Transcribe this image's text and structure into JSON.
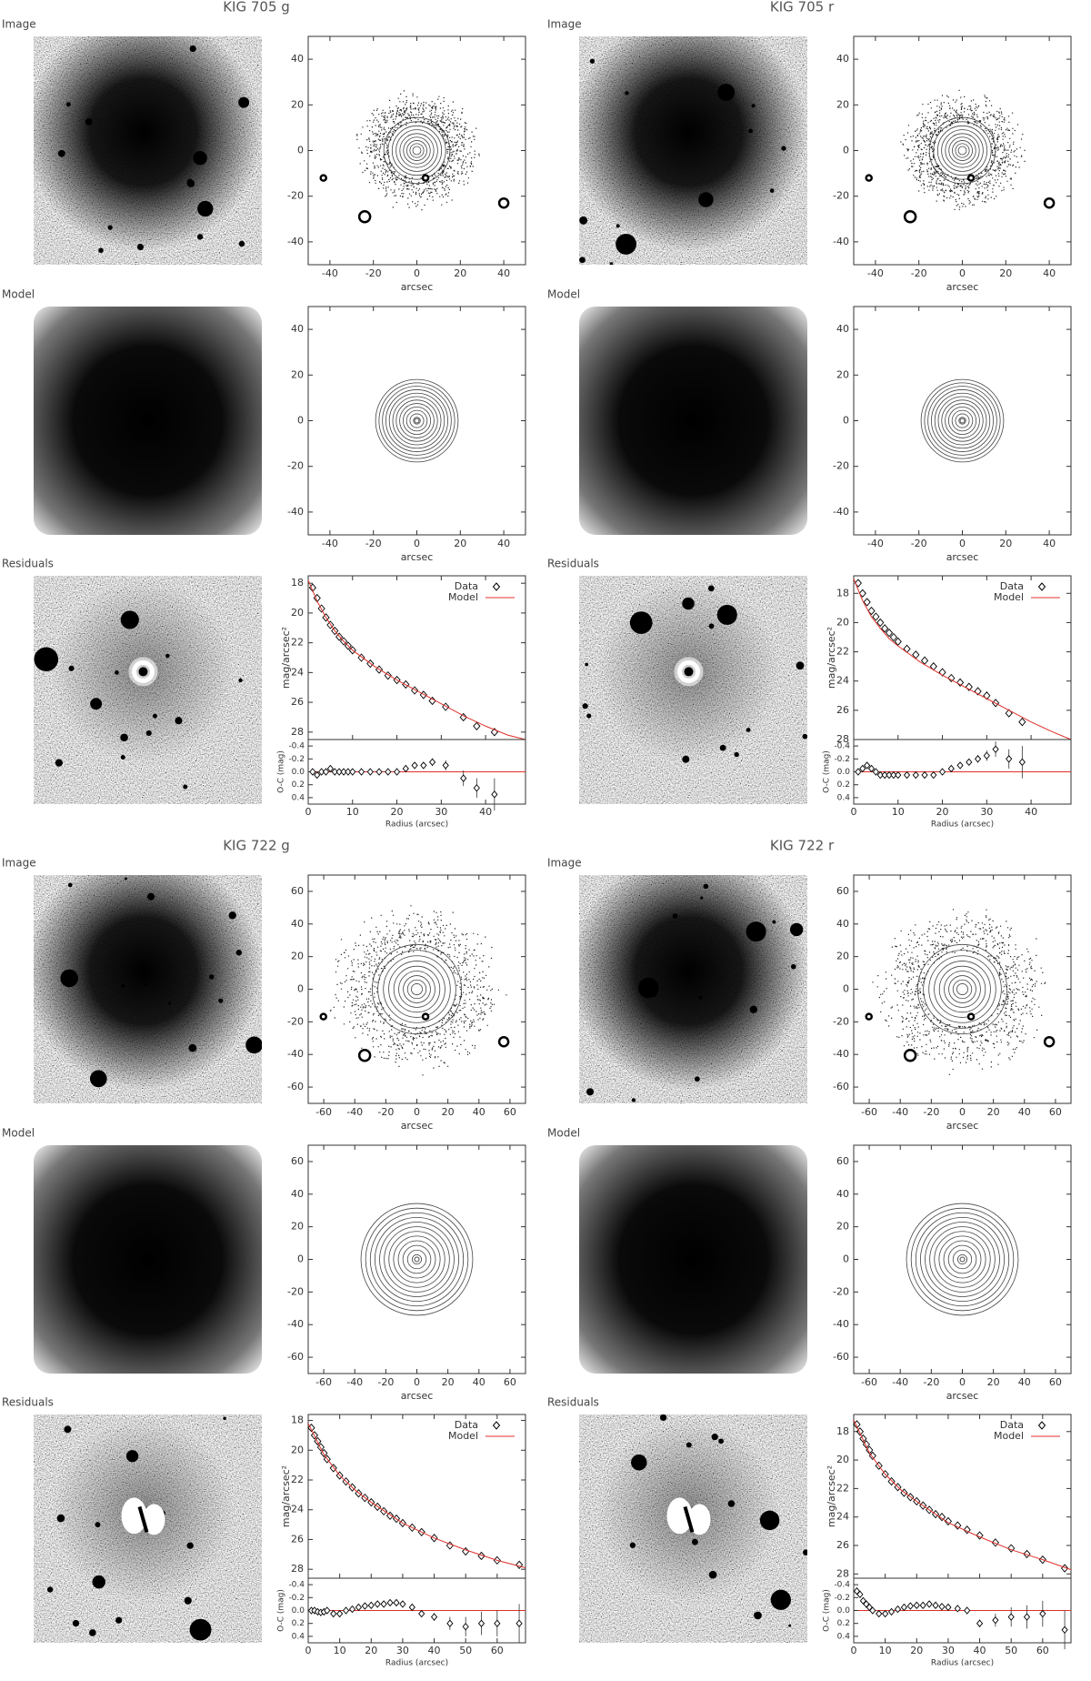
{
  "chart_data": [
    {
      "title": "KIG 705 g",
      "row_labels": [
        "Image",
        "Model",
        "Residuals"
      ],
      "contour": {
        "xlabel": "arcsec",
        "xlim": [
          -50,
          50
        ],
        "xticks": [
          -40,
          -20,
          0,
          20,
          40
        ],
        "ylim": [
          -50,
          50
        ],
        "yticks": [
          -40,
          -20,
          0,
          20,
          40
        ]
      },
      "profile": {
        "type": "scatter",
        "ylabel": "mag/arcsec²",
        "ylim": [
          28.5,
          17.5
        ],
        "yticks": [
          18,
          20,
          22,
          24,
          26,
          28
        ],
        "xlim": [
          0,
          49
        ],
        "xticks": [
          0,
          10,
          20,
          30,
          40
        ],
        "series": [
          {
            "name": "Data",
            "color": "#000000",
            "x": [
              1,
              2,
              3,
              4,
              5,
              6,
              7,
              8,
              9,
              10,
              12,
              14,
              16,
              18,
              20,
              22,
              24,
              26,
              28,
              31,
              35,
              38,
              42
            ],
            "values": [
              18.3,
              19.0,
              19.7,
              20.3,
              20.8,
              21.2,
              21.6,
              21.9,
              22.2,
              22.5,
              23.0,
              23.4,
              23.8,
              24.2,
              24.5,
              24.8,
              25.2,
              25.5,
              25.9,
              26.3,
              27.0,
              27.6,
              28.0
            ]
          },
          {
            "name": "Model",
            "color": "#e0302a",
            "x": [
              0,
              2,
              4,
              6,
              8,
              10,
              15,
              20,
              25,
              30,
              35,
              40,
              45,
              49
            ],
            "values": [
              17.8,
              19.2,
              20.3,
              21.2,
              21.9,
              22.5,
              23.6,
              24.5,
              25.3,
              26.1,
              26.9,
              27.6,
              28.2,
              28.5
            ]
          }
        ]
      },
      "residual": {
        "type": "errorbar",
        "ylabel": "O-C (mag)",
        "xlabel": "Radius (arcsec)",
        "ylim": [
          0.5,
          -0.5
        ],
        "yticks": [
          -0.4,
          -0.2,
          {
            "value": 0,
            "label": "0.0"
          },
          0.2,
          0.4
        ],
        "x": [
          1,
          2,
          3,
          4,
          5,
          6,
          7,
          8,
          9,
          10,
          12,
          14,
          16,
          18,
          20,
          22,
          24,
          26,
          28,
          31,
          35,
          38,
          42
        ],
        "values": [
          0.0,
          0.05,
          0.0,
          0.0,
          -0.05,
          0.0,
          0.0,
          0.0,
          0.0,
          0.0,
          0.0,
          0.0,
          0.0,
          0.0,
          0.0,
          -0.05,
          -0.1,
          -0.1,
          -0.15,
          -0.1,
          0.1,
          0.25,
          0.35
        ],
        "errors": [
          0.02,
          0.02,
          0.02,
          0.02,
          0.02,
          0.02,
          0.02,
          0.02,
          0.02,
          0.02,
          0.02,
          0.02,
          0.02,
          0.03,
          0.03,
          0.03,
          0.04,
          0.05,
          0.06,
          0.08,
          0.12,
          0.15,
          0.25
        ]
      }
    },
    {
      "title": "KIG 705 r",
      "row_labels": [
        "Image",
        "Model",
        "Residuals"
      ],
      "contour": {
        "xlabel": "arcsec",
        "xlim": [
          -50,
          50
        ],
        "xticks": [
          -40,
          -20,
          0,
          20,
          40
        ],
        "ylim": [
          -50,
          50
        ],
        "yticks": [
          -40,
          -20,
          0,
          20,
          40
        ]
      },
      "profile": {
        "type": "scatter",
        "ylabel": "mag/arcsec²",
        "ylim": [
          28,
          16.8
        ],
        "yticks": [
          18,
          20,
          22,
          24,
          26,
          28
        ],
        "xlim": [
          0,
          49
        ],
        "xticks": [
          0,
          10,
          20,
          30,
          40
        ],
        "series": [
          {
            "name": "Data",
            "color": "#000000",
            "x": [
              1,
              2,
              3,
              4,
              5,
              6,
              7,
              8,
              9,
              10,
              12,
              14,
              16,
              18,
              20,
              22,
              24,
              26,
              28,
              30,
              32,
              35,
              38
            ],
            "values": [
              17.3,
              18.0,
              18.6,
              19.2,
              19.6,
              20.0,
              20.4,
              20.7,
              21.0,
              21.3,
              21.8,
              22.2,
              22.6,
              23.0,
              23.4,
              23.8,
              24.1,
              24.4,
              24.7,
              25.0,
              25.5,
              26.2,
              26.8
            ]
          },
          {
            "name": "Model",
            "color": "#e0302a",
            "x": [
              0,
              2,
              4,
              6,
              8,
              10,
              15,
              20,
              25,
              30,
              35,
              40,
              45,
              49
            ],
            "values": [
              17.0,
              18.5,
              19.6,
              20.4,
              21.1,
              21.6,
              22.7,
              23.6,
              24.4,
              25.2,
              26.0,
              26.8,
              27.5,
              28.0
            ]
          }
        ]
      },
      "residual": {
        "type": "errorbar",
        "ylabel": "O-C (mag)",
        "xlabel": "Radius (arcsec)",
        "ylim": [
          0.5,
          -0.5
        ],
        "yticks": [
          -0.4,
          -0.2,
          {
            "value": 0,
            "label": "0.0"
          },
          0.2,
          0.4
        ],
        "x": [
          1,
          2,
          3,
          4,
          5,
          6,
          7,
          8,
          9,
          10,
          12,
          14,
          16,
          18,
          20,
          22,
          24,
          26,
          28,
          30,
          32,
          35,
          38
        ],
        "values": [
          0.0,
          -0.05,
          -0.1,
          -0.05,
          0,
          0.05,
          0.05,
          0.05,
          0.05,
          0.05,
          0.05,
          0.05,
          0.05,
          0.05,
          0,
          -0.05,
          -0.1,
          -0.15,
          -0.2,
          -0.25,
          -0.35,
          -0.2,
          -0.15
        ],
        "errors": [
          0.02,
          0.02,
          0.02,
          0.02,
          0.02,
          0.02,
          0.02,
          0.02,
          0.02,
          0.02,
          0.02,
          0.02,
          0.02,
          0.03,
          0.03,
          0.03,
          0.04,
          0.05,
          0.06,
          0.08,
          0.12,
          0.15,
          0.25
        ]
      }
    },
    {
      "title": "KIG 722 g",
      "row_labels": [
        "Image",
        "Model",
        "Residuals"
      ],
      "contour": {
        "xlabel": "arcsec",
        "xlim": [
          -70,
          70
        ],
        "xticks": [
          -60,
          -40,
          -20,
          0,
          20,
          40,
          60
        ],
        "ylim": [
          -70,
          70
        ],
        "yticks": [
          -60,
          -40,
          -20,
          0,
          20,
          40,
          60
        ]
      },
      "profile": {
        "type": "scatter",
        "ylabel": "mag/arcsec²",
        "ylim": [
          28.6,
          17.6
        ],
        "yticks": [
          18,
          20,
          22,
          24,
          26,
          28
        ],
        "xlim": [
          0,
          69
        ],
        "xticks": [
          0,
          10,
          20,
          30,
          40,
          50,
          60
        ],
        "series": [
          {
            "name": "Data",
            "color": "#000000",
            "x": [
              1,
              2,
              3,
              4,
              5,
              6,
              8,
              10,
              12,
              14,
              16,
              18,
              20,
              22,
              24,
              26,
              28,
              30,
              33,
              36,
              40,
              45,
              50,
              55,
              60,
              67
            ],
            "values": [
              18.5,
              19.0,
              19.4,
              19.8,
              20.2,
              20.6,
              21.2,
              21.7,
              22.1,
              22.5,
              22.9,
              23.2,
              23.5,
              23.8,
              24.1,
              24.4,
              24.6,
              24.9,
              25.2,
              25.5,
              25.9,
              26.4,
              26.8,
              27.1,
              27.4,
              27.7
            ]
          },
          {
            "name": "Model",
            "color": "#e0302a",
            "x": [
              0,
              5,
              10,
              15,
              20,
              30,
              40,
              50,
              60,
              69
            ],
            "values": [
              18.2,
              20.3,
              21.7,
              22.7,
              23.5,
              24.9,
              25.9,
              26.7,
              27.4,
              27.9
            ]
          }
        ]
      },
      "residual": {
        "type": "errorbar",
        "ylabel": "O-C (mag)",
        "xlabel": "Radius (arcsec)",
        "ylim": [
          0.5,
          -0.5
        ],
        "yticks": [
          -0.4,
          -0.2,
          {
            "value": 0,
            "label": "0.0"
          },
          0.2,
          0.4
        ],
        "x": [
          1,
          2,
          3,
          4,
          5,
          6,
          8,
          10,
          12,
          14,
          16,
          18,
          20,
          22,
          24,
          26,
          28,
          30,
          33,
          36,
          40,
          45,
          50,
          55,
          60,
          67
        ],
        "values": [
          0,
          0,
          0.02,
          0.03,
          0.02,
          0,
          0.05,
          0.05,
          0.0,
          -0.02,
          -0.05,
          -0.07,
          -0.08,
          -0.1,
          -0.1,
          -0.12,
          -0.12,
          -0.1,
          -0.05,
          0.05,
          0.1,
          0.2,
          0.25,
          0.2,
          0.2,
          0.2
        ],
        "errors": [
          0.02,
          0.02,
          0.02,
          0.02,
          0.02,
          0.02,
          0.02,
          0.02,
          0.02,
          0.02,
          0.02,
          0.02,
          0.02,
          0.02,
          0.02,
          0.02,
          0.02,
          0.02,
          0.03,
          0.04,
          0.06,
          0.1,
          0.15,
          0.18,
          0.2,
          0.3
        ]
      }
    },
    {
      "title": "KIG 722 r",
      "row_labels": [
        "Image",
        "Model",
        "Residuals"
      ],
      "contour": {
        "xlabel": "arcsec",
        "xlim": [
          -70,
          70
        ],
        "xticks": [
          -60,
          -40,
          -20,
          0,
          20,
          40,
          60
        ],
        "ylim": [
          -70,
          70
        ],
        "yticks": [
          -60,
          -40,
          -20,
          0,
          20,
          40,
          60
        ]
      },
      "profile": {
        "type": "scatter",
        "ylabel": "mag/arcsec²",
        "ylim": [
          28.3,
          16.8
        ],
        "yticks": [
          18,
          20,
          22,
          24,
          26,
          28
        ],
        "xlim": [
          0,
          69
        ],
        "xticks": [
          0,
          10,
          20,
          30,
          40,
          50,
          60
        ],
        "series": [
          {
            "name": "Data",
            "color": "#000000",
            "x": [
              1,
              2,
              3,
              4,
              5,
              6,
              8,
              10,
              12,
              14,
              16,
              18,
              20,
              22,
              24,
              26,
              28,
              30,
              33,
              36,
              40,
              45,
              50,
              55,
              60,
              67
            ],
            "values": [
              17.5,
              18.0,
              18.5,
              18.9,
              19.3,
              19.7,
              20.4,
              21.0,
              21.5,
              21.9,
              22.3,
              22.6,
              22.9,
              23.2,
              23.5,
              23.8,
              24.0,
              24.3,
              24.6,
              24.9,
              25.3,
              25.8,
              26.2,
              26.6,
              27.0,
              27.6
            ]
          },
          {
            "name": "Model",
            "color": "#e0302a",
            "x": [
              0,
              5,
              10,
              15,
              20,
              30,
              40,
              50,
              60,
              69
            ],
            "values": [
              17.2,
              19.5,
              21.0,
              22.1,
              22.9,
              24.4,
              25.4,
              26.3,
              27.0,
              27.7
            ]
          }
        ]
      },
      "residual": {
        "type": "errorbar",
        "ylabel": "O-C (mag)",
        "xlabel": "Radius (arcsec)",
        "ylim": [
          0.5,
          -0.5
        ],
        "yticks": [
          -0.4,
          -0.2,
          {
            "value": 0,
            "label": "0.0"
          },
          0.2,
          0.4
        ],
        "x": [
          1,
          2,
          3,
          4,
          5,
          6,
          8,
          10,
          12,
          14,
          16,
          18,
          20,
          22,
          24,
          26,
          28,
          30,
          33,
          36,
          40,
          45,
          50,
          55,
          60,
          67
        ],
        "values": [
          -0.3,
          -0.25,
          -0.15,
          -0.1,
          -0.05,
          0,
          0.05,
          0.05,
          0.02,
          -0.02,
          -0.05,
          -0.07,
          -0.08,
          -0.08,
          -0.1,
          -0.08,
          -0.06,
          -0.05,
          -0.03,
          0,
          0.2,
          0.15,
          0.1,
          0.1,
          0.05,
          0.3
        ],
        "errors": [
          0.02,
          0.02,
          0.02,
          0.02,
          0.02,
          0.02,
          0.02,
          0.02,
          0.02,
          0.02,
          0.02,
          0.02,
          0.02,
          0.02,
          0.02,
          0.02,
          0.02,
          0.02,
          0.03,
          0.04,
          0.06,
          0.1,
          0.15,
          0.18,
          0.2,
          0.3
        ]
      }
    }
  ]
}
